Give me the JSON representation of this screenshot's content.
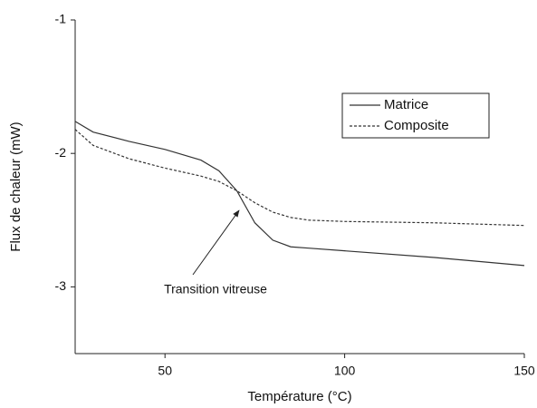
{
  "chart_data": {
    "type": "line",
    "x_label": "Température (°C)",
    "y_label": "Flux de chaleur (mW)",
    "annotation": "Transition vitreuse",
    "x": [
      25,
      30,
      40,
      50,
      60,
      65,
      70,
      75,
      80,
      85,
      90,
      100,
      125,
      150
    ],
    "series": [
      {
        "name": "Matrice",
        "color": "#333333",
        "linestyle": "solid",
        "values": [
          -1.76,
          -1.84,
          -1.91,
          -1.97,
          -2.05,
          -2.13,
          -2.28,
          -2.52,
          -2.65,
          -2.7,
          -2.71,
          -2.73,
          -2.78,
          -2.84
        ]
      },
      {
        "name": "Composite",
        "color": "#333333",
        "linestyle": "dashed",
        "values": [
          -1.82,
          -1.94,
          -2.04,
          -2.11,
          -2.17,
          -2.21,
          -2.28,
          -2.37,
          -2.44,
          -2.48,
          -2.5,
          -2.51,
          -2.52,
          -2.54
        ]
      }
    ],
    "xlim": [
      25,
      150
    ],
    "xticks": [
      50,
      100,
      150
    ],
    "ylim": [
      -3.5,
      -1
    ],
    "yticks": [
      -1,
      -2,
      -3
    ],
    "legend": "top-right"
  }
}
